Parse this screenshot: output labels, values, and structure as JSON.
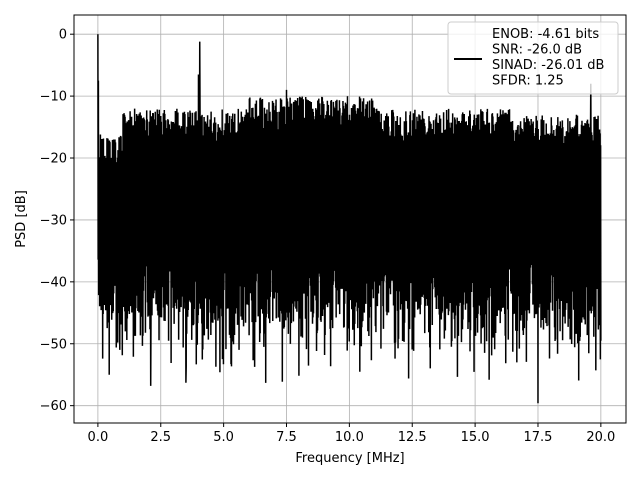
{
  "chart_data": {
    "type": "line",
    "title": "",
    "xlabel": "Frequency [MHz]",
    "ylabel": "PSD [dB]",
    "xlim": [
      -0.95,
      21.0
    ],
    "ylim": [
      -62.8,
      3.1
    ],
    "xticks": [
      0.0,
      2.5,
      5.0,
      7.5,
      10.0,
      12.5,
      15.0,
      17.5,
      20.0
    ],
    "xtick_labels": [
      "0.0",
      "2.5",
      "5.0",
      "7.5",
      "10.0",
      "12.5",
      "15.0",
      "17.5",
      "20.0"
    ],
    "yticks": [
      0,
      -10,
      -20,
      -30,
      -40,
      -50,
      -60
    ],
    "ytick_labels": [
      "0",
      "−10",
      "−20",
      "−30",
      "−40",
      "−50",
      "−60"
    ],
    "grid": true,
    "line_color": "#000000",
    "legend": {
      "placement": "top-right",
      "entries": [
        "ENOB: -4.61 bits",
        "SNR: -26.0 dB",
        "SINAD: -26.01 dB",
        "SFDR: 1.25"
      ]
    },
    "series": [
      {
        "x_range": [
          0.0,
          20.0
        ],
        "points": 2000,
        "y_typical_range": [
          -45,
          -12
        ],
        "peaks": [
          {
            "x": 0.0,
            "y": 0.0
          },
          {
            "x": 0.02,
            "y": -7.5
          },
          {
            "x": 4.05,
            "y": -1.2
          },
          {
            "x": 4.0,
            "y": -6.5
          },
          {
            "x": 7.5,
            "y": -9.0
          },
          {
            "x": 19.6,
            "y": -8.0
          }
        ],
        "troughs": [
          {
            "x": 0.45,
            "y": -55.0
          },
          {
            "x": 2.1,
            "y": -56.8
          },
          {
            "x": 3.5,
            "y": -56.3
          },
          {
            "x": 6.6,
            "y": -50.5
          },
          {
            "x": 17.5,
            "y": -59.6
          },
          {
            "x": 19.8,
            "y": -54.3
          }
        ]
      }
    ]
  }
}
